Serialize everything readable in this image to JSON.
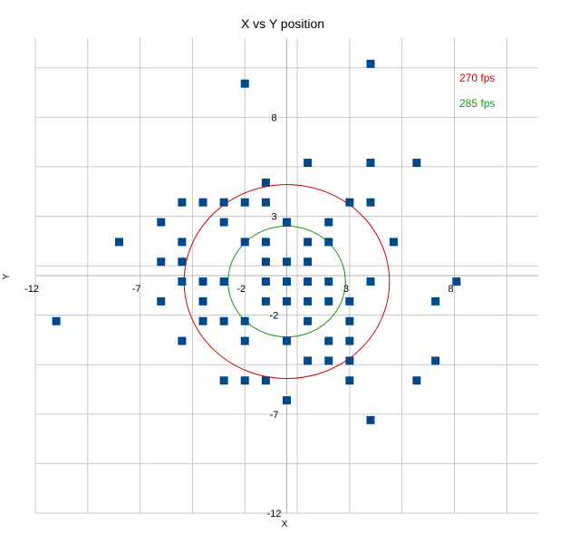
{
  "chart_data": {
    "type": "scatter",
    "title": "X vs Y position",
    "xlabel": "X",
    "ylabel": "Y",
    "xlim": [
      -12,
      12
    ],
    "ylim": [
      -12,
      12
    ],
    "grid": true,
    "x_ticks": [
      -12,
      -7,
      -2,
      3,
      8
    ],
    "y_ticks": [
      8,
      3,
      -2,
      -7,
      -12
    ],
    "marker_color": "#004a8c",
    "points": [
      [
        4,
        10.7
      ],
      [
        -2,
        9.7
      ],
      [
        1,
        5.7
      ],
      [
        4,
        5.7
      ],
      [
        6.2,
        5.7
      ],
      [
        -1,
        4.7
      ],
      [
        -5,
        3.7
      ],
      [
        -4,
        3.7
      ],
      [
        -3,
        3.7
      ],
      [
        -2,
        3.7
      ],
      [
        -1,
        3.7
      ],
      [
        3,
        3.7
      ],
      [
        4,
        3.7
      ],
      [
        -6,
        2.7
      ],
      [
        -3,
        2.7
      ],
      [
        0,
        2.7
      ],
      [
        2,
        2.7
      ],
      [
        -8,
        1.7
      ],
      [
        -5,
        1.7
      ],
      [
        -2,
        1.7
      ],
      [
        -1,
        1.7
      ],
      [
        1,
        1.7
      ],
      [
        2,
        1.7
      ],
      [
        5.1,
        1.7
      ],
      [
        -6,
        0.7
      ],
      [
        -5,
        0.7
      ],
      [
        -1,
        0.7
      ],
      [
        0,
        0.7
      ],
      [
        1,
        0.7
      ],
      [
        -5,
        -0.3
      ],
      [
        -4,
        -0.3
      ],
      [
        -3,
        -0.3
      ],
      [
        -1,
        -0.3
      ],
      [
        0,
        -0.3
      ],
      [
        1,
        -0.3
      ],
      [
        2,
        -0.3
      ],
      [
        4,
        -0.3
      ],
      [
        8.1,
        -0.3
      ],
      [
        -6,
        -1.3
      ],
      [
        -4,
        -1.3
      ],
      [
        -1,
        -1.3
      ],
      [
        0,
        -1.3
      ],
      [
        1,
        -1.3
      ],
      [
        2,
        -1.3
      ],
      [
        3,
        -1.3
      ],
      [
        7.1,
        -1.3
      ],
      [
        -11,
        -2.3
      ],
      [
        -4,
        -2.3
      ],
      [
        -3,
        -2.3
      ],
      [
        -2,
        -2.3
      ],
      [
        1,
        -2.3
      ],
      [
        3,
        -2.3
      ],
      [
        -5,
        -3.3
      ],
      [
        -2,
        -3.3
      ],
      [
        0,
        -3.3
      ],
      [
        2,
        -3.3
      ],
      [
        3,
        -3.3
      ],
      [
        1,
        -4.3
      ],
      [
        2,
        -4.3
      ],
      [
        3,
        -4.3
      ],
      [
        7.1,
        -4.3
      ],
      [
        -3,
        -5.3
      ],
      [
        -2,
        -5.3
      ],
      [
        -1,
        -5.3
      ],
      [
        3,
        -5.3
      ],
      [
        6.2,
        -5.3
      ],
      [
        0,
        -6.3
      ],
      [
        4,
        -7.3
      ]
    ],
    "circles": [
      {
        "label": "270 fps",
        "color": "#cc0000",
        "cx": 0,
        "cy": -0.3,
        "r": 4.9
      },
      {
        "label": "285 fps",
        "color": "#119911",
        "cx": 0,
        "cy": -0.3,
        "r": 2.8
      }
    ]
  }
}
